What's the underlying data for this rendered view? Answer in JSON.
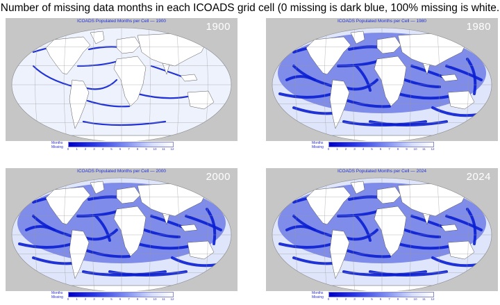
{
  "title": "Number of missing data months in each ICOADS grid cell (0 missing is dark blue, 100% missing is white.",
  "panels": [
    {
      "year": "1900",
      "map_title": "ICOADS Populated Months per Cell — 1900"
    },
    {
      "year": "1980",
      "map_title": "ICOADS Populated Months per Cell — 1980"
    },
    {
      "year": "2000",
      "map_title": "ICOADS Populated Months per Cell — 2000"
    },
    {
      "year": "2024",
      "map_title": "ICOADS Populated Months per Cell — 2024"
    }
  ],
  "legend": {
    "label_line1": "Months",
    "label_line2": "Missing",
    "ticks": [
      "0",
      "1",
      "2",
      "3",
      "4",
      "5",
      "6",
      "7",
      "8",
      "9",
      "10",
      "11",
      "12"
    ],
    "color_low": "#0000c8",
    "color_high": "#ffffff"
  },
  "colors": {
    "ocean_grey": "#c6c6c6",
    "data_blue": "#0a1ed2",
    "land": "#ffffff"
  }
}
